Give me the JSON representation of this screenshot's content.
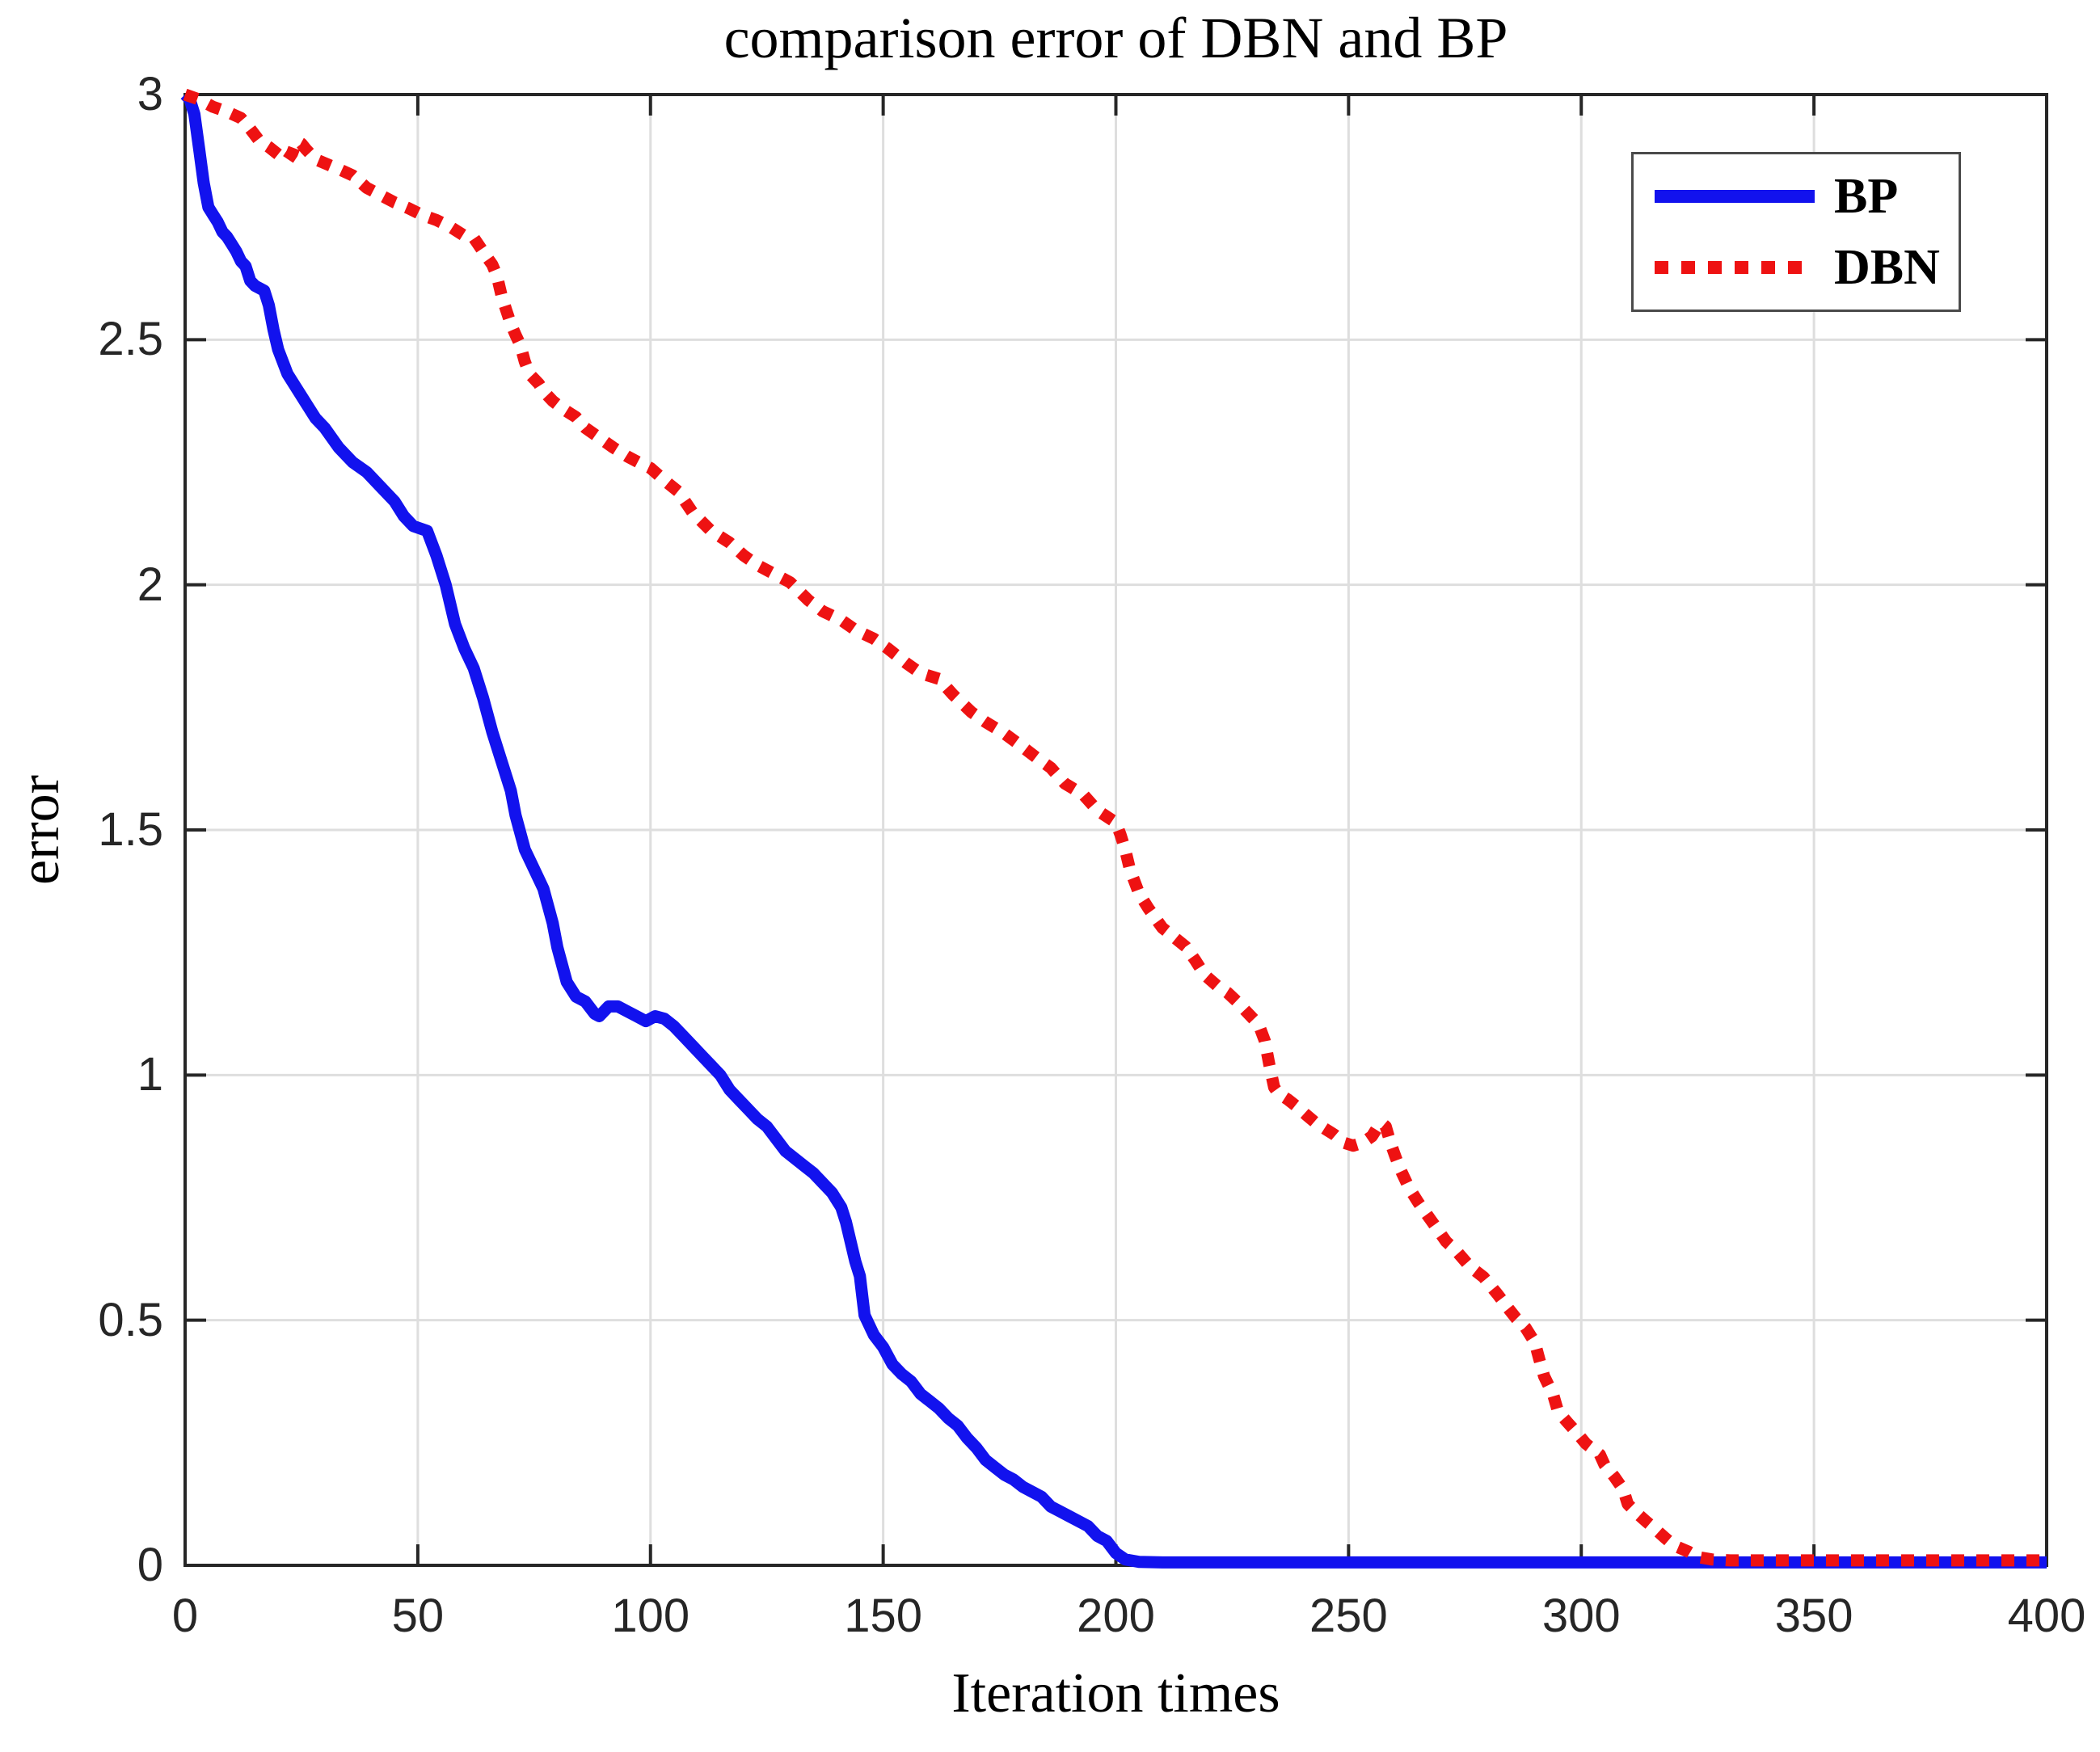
{
  "title": "comparison error of DBN and BP",
  "xlabel": "Iteration times",
  "ylabel": "error",
  "legend": {
    "items": [
      {
        "label": "BP",
        "color": "#1212ee",
        "style": "solid"
      },
      {
        "label": "DBN",
        "color": "#ee1212",
        "style": "dotted"
      }
    ],
    "position": "top-right"
  },
  "axes": {
    "xlim": [
      0,
      400
    ],
    "ylim": [
      0,
      3
    ],
    "xticks": [
      0,
      50,
      100,
      150,
      200,
      250,
      300,
      350,
      400
    ],
    "xtick_labels": [
      "0",
      "50",
      "100",
      "150",
      "200",
      "250",
      "300",
      "350",
      "400"
    ],
    "yticks": [
      0,
      0.5,
      1,
      1.5,
      2,
      2.5,
      3
    ],
    "ytick_labels": [
      "0",
      "0.5",
      "1",
      "1.5",
      "2",
      "2.5",
      "3"
    ],
    "grid": true
  },
  "colors": {
    "bp_line": "#1212ee",
    "dbn_line": "#ee1212",
    "grid": "#dedede",
    "axis": "#262626",
    "tick_text": "#262626",
    "background": "#ffffff"
  },
  "chart_data": {
    "type": "line",
    "title": "comparison error of DBN and BP",
    "xlabel": "Iteration times",
    "ylabel": "error",
    "xlim": [
      0,
      400
    ],
    "ylim": [
      0,
      3
    ],
    "grid": true,
    "legend_position": "top-right",
    "series": [
      {
        "name": "BP",
        "color": "#1212ee",
        "line_style": "solid",
        "points": [
          [
            0,
            3.0
          ],
          [
            1,
            2.99
          ],
          [
            2,
            2.96
          ],
          [
            3,
            2.89
          ],
          [
            4,
            2.82
          ],
          [
            5,
            2.77
          ],
          [
            6,
            2.755
          ],
          [
            7,
            2.74
          ],
          [
            8,
            2.72
          ],
          [
            9,
            2.71
          ],
          [
            10,
            2.695
          ],
          [
            11,
            2.68
          ],
          [
            12,
            2.66
          ],
          [
            13,
            2.65
          ],
          [
            14,
            2.62
          ],
          [
            15,
            2.61
          ],
          [
            16,
            2.605
          ],
          [
            17,
            2.6
          ],
          [
            18,
            2.57
          ],
          [
            19,
            2.52
          ],
          [
            20,
            2.48
          ],
          [
            22,
            2.43
          ],
          [
            24,
            2.4
          ],
          [
            26,
            2.37
          ],
          [
            28,
            2.34
          ],
          [
            30,
            2.32
          ],
          [
            33,
            2.28
          ],
          [
            36,
            2.25
          ],
          [
            39,
            2.23
          ],
          [
            42,
            2.2
          ],
          [
            45,
            2.17
          ],
          [
            47,
            2.14
          ],
          [
            49,
            2.12
          ],
          [
            52,
            2.11
          ],
          [
            54,
            2.06
          ],
          [
            56,
            2.0
          ],
          [
            58,
            1.92
          ],
          [
            60,
            1.87
          ],
          [
            62,
            1.83
          ],
          [
            64,
            1.77
          ],
          [
            66,
            1.7
          ],
          [
            68,
            1.64
          ],
          [
            70,
            1.58
          ],
          [
            71,
            1.53
          ],
          [
            73,
            1.46
          ],
          [
            75,
            1.42
          ],
          [
            77,
            1.38
          ],
          [
            79,
            1.31
          ],
          [
            80,
            1.26
          ],
          [
            82,
            1.19
          ],
          [
            84,
            1.16
          ],
          [
            86,
            1.15
          ],
          [
            88,
            1.125
          ],
          [
            89,
            1.12
          ],
          [
            91,
            1.14
          ],
          [
            93,
            1.14
          ],
          [
            95,
            1.13
          ],
          [
            97,
            1.12
          ],
          [
            99,
            1.11
          ],
          [
            101,
            1.12
          ],
          [
            103,
            1.115
          ],
          [
            105,
            1.1
          ],
          [
            107,
            1.08
          ],
          [
            109,
            1.06
          ],
          [
            111,
            1.04
          ],
          [
            113,
            1.02
          ],
          [
            115,
            1.0
          ],
          [
            117,
            0.97
          ],
          [
            119,
            0.95
          ],
          [
            121,
            0.93
          ],
          [
            123,
            0.91
          ],
          [
            125,
            0.895
          ],
          [
            127,
            0.87
          ],
          [
            129,
            0.845
          ],
          [
            131,
            0.83
          ],
          [
            133,
            0.815
          ],
          [
            135,
            0.8
          ],
          [
            137,
            0.78
          ],
          [
            139,
            0.76
          ],
          [
            141,
            0.73
          ],
          [
            142,
            0.7
          ],
          [
            144,
            0.62
          ],
          [
            145,
            0.59
          ],
          [
            146,
            0.51
          ],
          [
            148,
            0.47
          ],
          [
            150,
            0.445
          ],
          [
            152,
            0.41
          ],
          [
            154,
            0.39
          ],
          [
            156,
            0.375
          ],
          [
            158,
            0.35
          ],
          [
            160,
            0.335
          ],
          [
            162,
            0.32
          ],
          [
            164,
            0.3
          ],
          [
            166,
            0.285
          ],
          [
            168,
            0.26
          ],
          [
            170,
            0.24
          ],
          [
            172,
            0.215
          ],
          [
            174,
            0.2
          ],
          [
            176,
            0.185
          ],
          [
            178,
            0.175
          ],
          [
            180,
            0.16
          ],
          [
            182,
            0.15
          ],
          [
            184,
            0.14
          ],
          [
            186,
            0.12
          ],
          [
            188,
            0.11
          ],
          [
            190,
            0.1
          ],
          [
            192,
            0.09
          ],
          [
            194,
            0.08
          ],
          [
            196,
            0.06
          ],
          [
            198,
            0.05
          ],
          [
            200,
            0.025
          ],
          [
            202,
            0.012
          ],
          [
            205,
            0.007
          ],
          [
            210,
            0.006
          ],
          [
            230,
            0.006
          ],
          [
            260,
            0.006
          ],
          [
            300,
            0.006
          ],
          [
            350,
            0.006
          ],
          [
            400,
            0.006
          ]
        ]
      },
      {
        "name": "DBN",
        "color": "#ee1212",
        "line_style": "dotted",
        "points": [
          [
            0,
            3.0
          ],
          [
            3,
            2.99
          ],
          [
            6,
            2.975
          ],
          [
            9,
            2.965
          ],
          [
            12,
            2.952
          ],
          [
            14,
            2.93
          ],
          [
            16,
            2.905
          ],
          [
            18,
            2.893
          ],
          [
            20,
            2.878
          ],
          [
            22,
            2.866
          ],
          [
            23,
            2.88
          ],
          [
            24,
            2.905
          ],
          [
            25,
            2.9
          ],
          [
            26,
            2.888
          ],
          [
            28,
            2.868
          ],
          [
            30,
            2.86
          ],
          [
            33,
            2.848
          ],
          [
            36,
            2.835
          ],
          [
            39,
            2.81
          ],
          [
            42,
            2.795
          ],
          [
            45,
            2.78
          ],
          [
            48,
            2.768
          ],
          [
            51,
            2.754
          ],
          [
            54,
            2.744
          ],
          [
            57,
            2.73
          ],
          [
            60,
            2.712
          ],
          [
            62,
            2.708
          ],
          [
            64,
            2.68
          ],
          [
            66,
            2.653
          ],
          [
            67,
            2.63
          ],
          [
            68,
            2.59
          ],
          [
            69,
            2.56
          ],
          [
            70,
            2.532
          ],
          [
            71,
            2.51
          ],
          [
            72,
            2.49
          ],
          [
            73,
            2.455
          ],
          [
            74,
            2.43
          ],
          [
            76,
            2.41
          ],
          [
            77,
            2.395
          ],
          [
            79,
            2.375
          ],
          [
            81,
            2.36
          ],
          [
            84,
            2.342
          ],
          [
            86,
            2.32
          ],
          [
            89,
            2.3
          ],
          [
            92,
            2.28
          ],
          [
            95,
            2.262
          ],
          [
            98,
            2.247
          ],
          [
            100,
            2.238
          ],
          [
            103,
            2.213
          ],
          [
            106,
            2.19
          ],
          [
            109,
            2.148
          ],
          [
            113,
            2.11
          ],
          [
            117,
            2.086
          ],
          [
            120,
            2.06
          ],
          [
            123,
            2.04
          ],
          [
            127,
            2.02
          ],
          [
            130,
            2.005
          ],
          [
            134,
            1.968
          ],
          [
            137,
            1.946
          ],
          [
            141,
            1.928
          ],
          [
            144,
            1.908
          ],
          [
            148,
            1.89
          ],
          [
            151,
            1.87
          ],
          [
            155,
            1.84
          ],
          [
            158,
            1.82
          ],
          [
            162,
            1.808
          ],
          [
            165,
            1.776
          ],
          [
            169,
            1.74
          ],
          [
            172,
            1.72
          ],
          [
            176,
            1.697
          ],
          [
            179,
            1.676
          ],
          [
            183,
            1.647
          ],
          [
            186,
            1.627
          ],
          [
            189,
            1.595
          ],
          [
            193,
            1.572
          ],
          [
            196,
            1.54
          ],
          [
            200,
            1.515
          ],
          [
            201,
            1.49
          ],
          [
            202,
            1.46
          ],
          [
            203,
            1.42
          ],
          [
            205,
            1.37
          ],
          [
            207,
            1.34
          ],
          [
            210,
            1.3
          ],
          [
            212,
            1.285
          ],
          [
            215,
            1.262
          ],
          [
            217,
            1.235
          ],
          [
            219,
            1.205
          ],
          [
            222,
            1.18
          ],
          [
            224,
            1.168
          ],
          [
            226,
            1.15
          ],
          [
            228,
            1.13
          ],
          [
            230,
            1.11
          ],
          [
            231,
            1.095
          ],
          [
            232,
            1.07
          ],
          [
            233,
            1.02
          ],
          [
            234,
            0.975
          ],
          [
            235,
            0.962
          ],
          [
            237,
            0.95
          ],
          [
            239,
            0.935
          ],
          [
            241,
            0.918
          ],
          [
            243,
            0.902
          ],
          [
            245,
            0.89
          ],
          [
            247,
            0.878
          ],
          [
            249,
            0.862
          ],
          [
            251,
            0.856
          ],
          [
            253,
            0.862
          ],
          [
            255,
            0.875
          ],
          [
            256,
            0.89
          ],
          [
            257,
            0.903
          ],
          [
            258,
            0.895
          ],
          [
            259,
            0.862
          ],
          [
            260,
            0.835
          ],
          [
            261,
            0.81
          ],
          [
            263,
            0.77
          ],
          [
            265,
            0.74
          ],
          [
            268,
            0.7
          ],
          [
            271,
            0.66
          ],
          [
            273,
            0.643
          ],
          [
            276,
            0.61
          ],
          [
            279,
            0.588
          ],
          [
            282,
            0.553
          ],
          [
            284,
            0.528
          ],
          [
            286,
            0.504
          ],
          [
            288,
            0.485
          ],
          [
            290,
            0.455
          ],
          [
            291,
            0.42
          ],
          [
            292,
            0.386
          ],
          [
            294,
            0.347
          ],
          [
            295,
            0.314
          ],
          [
            297,
            0.292
          ],
          [
            299,
            0.271
          ],
          [
            301,
            0.248
          ],
          [
            304,
            0.226
          ],
          [
            305,
            0.205
          ],
          [
            307,
            0.182
          ],
          [
            309,
            0.155
          ],
          [
            310,
            0.125
          ],
          [
            312,
            0.106
          ],
          [
            314,
            0.089
          ],
          [
            316,
            0.073
          ],
          [
            318,
            0.056
          ],
          [
            320,
            0.04
          ],
          [
            323,
            0.028
          ],
          [
            325,
            0.017
          ],
          [
            328,
            0.012
          ],
          [
            332,
            0.01
          ],
          [
            340,
            0.01
          ],
          [
            360,
            0.01
          ],
          [
            380,
            0.01
          ],
          [
            400,
            0.01
          ]
        ]
      }
    ]
  }
}
